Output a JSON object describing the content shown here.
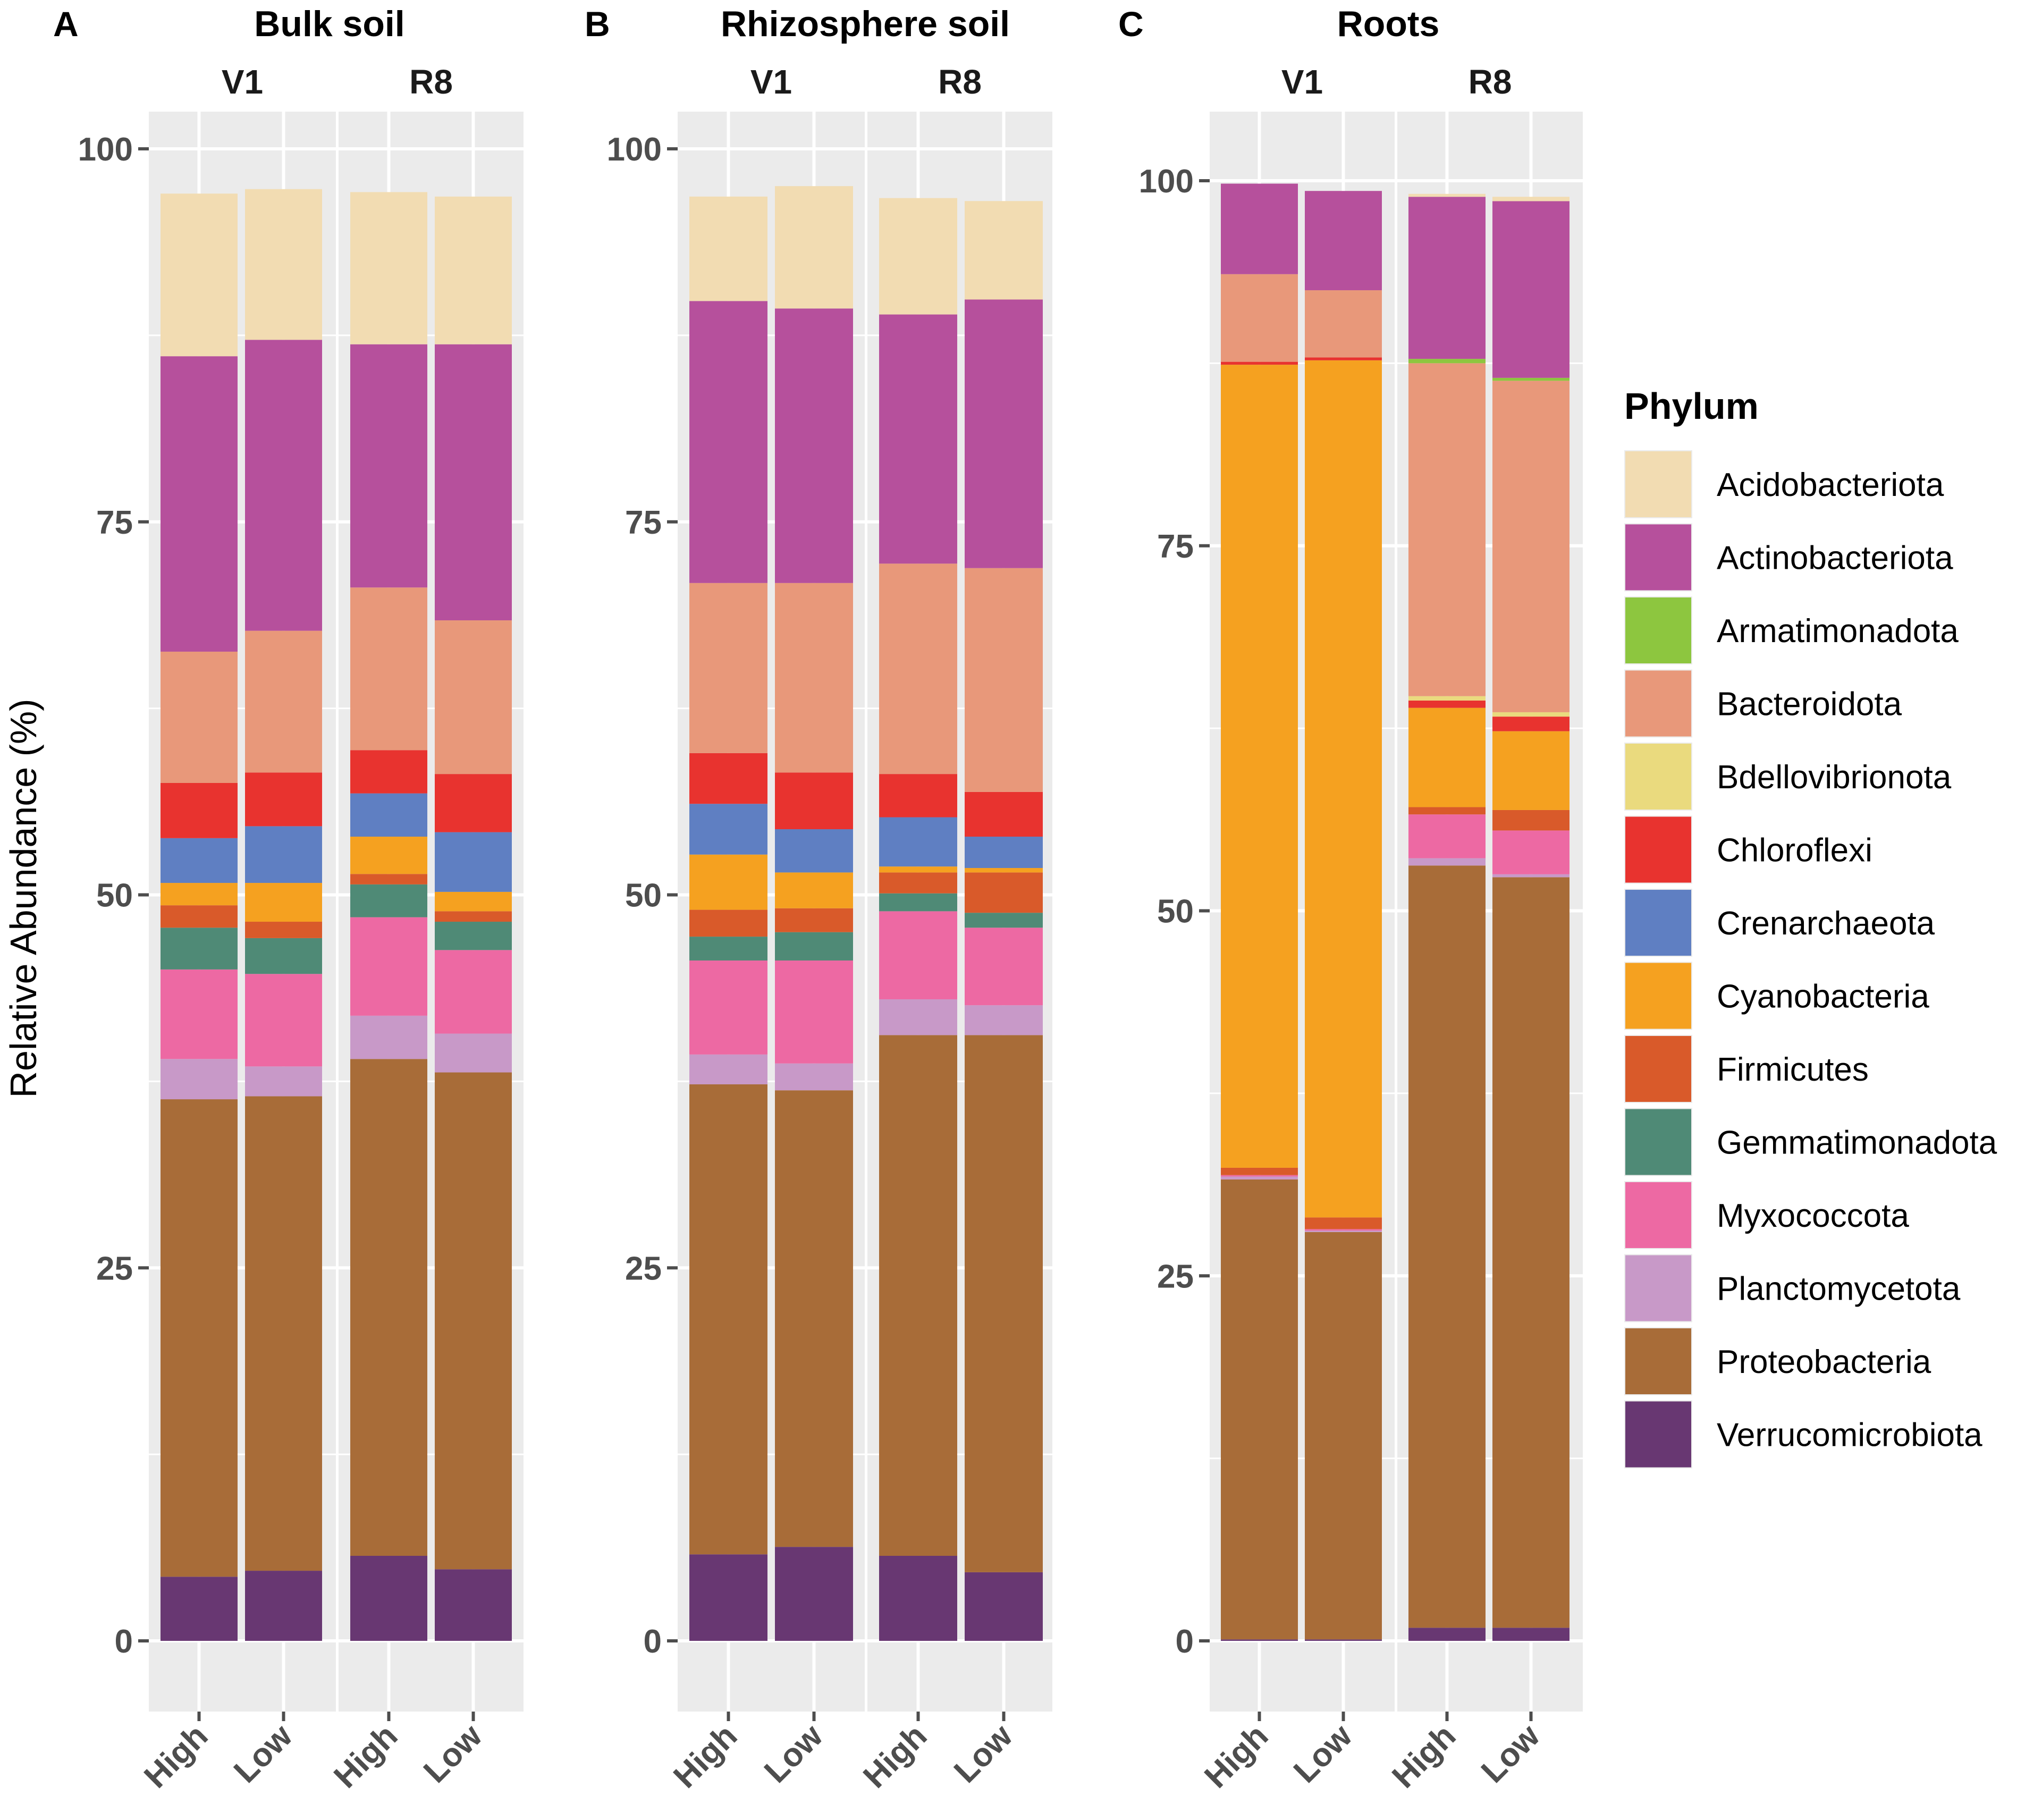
{
  "chart_data": {
    "type": "stacked-bar",
    "ylabel": "Relative Abundance (%)",
    "ylim": [
      -8,
      106
    ],
    "yticks": [
      0,
      25,
      50,
      75,
      100
    ],
    "ytick_labels": [
      "0",
      "25",
      "50",
      "75",
      "100"
    ],
    "grid": true,
    "legend": {
      "title": "Phylum",
      "position": "right",
      "entries": [
        {
          "name": "Acidobacteriota",
          "color": "#f2dcb2"
        },
        {
          "name": "Actinobacteriota",
          "color": "#b6509c"
        },
        {
          "name": "Armatimonadota",
          "color": "#8dc63f"
        },
        {
          "name": "Bacteroidota",
          "color": "#e8987a"
        },
        {
          "name": "Bdellovibrionota",
          "color": "#eada7e"
        },
        {
          "name": "Chloroflexi",
          "color": "#e8332f"
        },
        {
          "name": "Crenarchaeota",
          "color": "#5f7fc2"
        },
        {
          "name": "Cyanobacteria",
          "color": "#f5a120"
        },
        {
          "name": "Firmicutes",
          "color": "#d95a2a"
        },
        {
          "name": "Gemmatimonadota",
          "color": "#4f8a76"
        },
        {
          "name": "Myxococcota",
          "color": "#ed69a3"
        },
        {
          "name": "Planctomycetota",
          "color": "#c899c8"
        },
        {
          "name": "Proteobacteria",
          "color": "#a86c38"
        },
        {
          "name": "Verrucomicrobiota",
          "color": "#683772"
        }
      ]
    },
    "stack_order": [
      "Verrucomicrobiota",
      "Proteobacteria",
      "Planctomycetota",
      "Myxococcota",
      "Gemmatimonadota",
      "Firmicutes",
      "Cyanobacteria",
      "Crenarchaeota",
      "Chloroflexi",
      "Bdellovibrionota",
      "Bacteroidota",
      "Armatimonadota",
      "Actinobacteriota",
      "Acidobacteriota"
    ],
    "panels": [
      {
        "letter": "A",
        "title": "Bulk soil",
        "facets": [
          {
            "label": "V1",
            "bars": [
              {
                "category": "High",
                "values": {
                  "Verrucomicrobiota": 4.3,
                  "Proteobacteria": 32.0,
                  "Planctomycetota": 2.7,
                  "Myxococcota": 6.0,
                  "Gemmatimonadota": 2.8,
                  "Firmicutes": 1.5,
                  "Cyanobacteria": 1.5,
                  "Crenarchaeota": 3.0,
                  "Chloroflexi": 3.7,
                  "Bdellovibrionota": 0,
                  "Bacteroidota": 8.8,
                  "Armatimonadota": 0,
                  "Actinobacteriota": 19.8,
                  "Acidobacteriota": 10.9
                }
              },
              {
                "category": "Low",
                "values": {
                  "Verrucomicrobiota": 4.7,
                  "Proteobacteria": 31.8,
                  "Planctomycetota": 2.0,
                  "Myxococcota": 6.2,
                  "Gemmatimonadota": 2.4,
                  "Firmicutes": 1.1,
                  "Cyanobacteria": 2.6,
                  "Crenarchaeota": 3.8,
                  "Chloroflexi": 3.6,
                  "Bdellovibrionota": 0,
                  "Bacteroidota": 9.5,
                  "Armatimonadota": 0,
                  "Actinobacteriota": 19.5,
                  "Acidobacteriota": 10.1
                }
              }
            ]
          },
          {
            "label": "R8",
            "bars": [
              {
                "category": "High",
                "values": {
                  "Verrucomicrobiota": 5.7,
                  "Proteobacteria": 33.3,
                  "Planctomycetota": 2.9,
                  "Myxococcota": 6.6,
                  "Gemmatimonadota": 2.2,
                  "Firmicutes": 0.7,
                  "Cyanobacteria": 2.5,
                  "Crenarchaeota": 2.9,
                  "Chloroflexi": 2.9,
                  "Bdellovibrionota": 0,
                  "Bacteroidota": 10.9,
                  "Armatimonadota": 0,
                  "Actinobacteriota": 16.3,
                  "Acidobacteriota": 10.2
                }
              },
              {
                "category": "Low",
                "values": {
                  "Verrucomicrobiota": 4.8,
                  "Proteobacteria": 33.3,
                  "Planctomycetota": 2.6,
                  "Myxococcota": 5.6,
                  "Gemmatimonadota": 1.9,
                  "Firmicutes": 0.7,
                  "Cyanobacteria": 1.3,
                  "Crenarchaeota": 4.0,
                  "Chloroflexi": 3.9,
                  "Bdellovibrionota": 0,
                  "Bacteroidota": 10.3,
                  "Armatimonadota": 0,
                  "Actinobacteriota": 18.5,
                  "Acidobacteriota": 9.9
                }
              }
            ]
          }
        ]
      },
      {
        "letter": "B",
        "title": "Rhizosphere soil",
        "facets": [
          {
            "label": "V1",
            "bars": [
              {
                "category": "High",
                "values": {
                  "Verrucomicrobiota": 5.8,
                  "Proteobacteria": 31.5,
                  "Planctomycetota": 2.0,
                  "Myxococcota": 6.3,
                  "Gemmatimonadota": 1.6,
                  "Firmicutes": 1.8,
                  "Cyanobacteria": 3.7,
                  "Crenarchaeota": 3.4,
                  "Chloroflexi": 3.4,
                  "Bdellovibrionota": 0,
                  "Bacteroidota": 11.4,
                  "Armatimonadota": 0,
                  "Actinobacteriota": 18.9,
                  "Acidobacteriota": 7.0
                }
              },
              {
                "category": "Low",
                "values": {
                  "Verrucomicrobiota": 6.3,
                  "Proteobacteria": 30.6,
                  "Planctomycetota": 1.8,
                  "Myxococcota": 6.9,
                  "Gemmatimonadota": 1.9,
                  "Firmicutes": 1.6,
                  "Cyanobacteria": 2.4,
                  "Crenarchaeota": 2.9,
                  "Chloroflexi": 3.8,
                  "Bdellovibrionota": 0,
                  "Bacteroidota": 12.7,
                  "Armatimonadota": 0,
                  "Actinobacteriota": 18.4,
                  "Acidobacteriota": 8.2
                }
              }
            ]
          },
          {
            "label": "R8",
            "bars": [
              {
                "category": "High",
                "values": {
                  "Verrucomicrobiota": 5.7,
                  "Proteobacteria": 34.9,
                  "Planctomycetota": 2.4,
                  "Myxococcota": 5.9,
                  "Gemmatimonadota": 1.2,
                  "Firmicutes": 1.4,
                  "Cyanobacteria": 0.4,
                  "Crenarchaeota": 3.3,
                  "Chloroflexi": 2.9,
                  "Bdellovibrionota": 0,
                  "Bacteroidota": 14.1,
                  "Armatimonadota": 0,
                  "Actinobacteriota": 16.7,
                  "Acidobacteriota": 7.8
                }
              },
              {
                "category": "Low",
                "values": {
                  "Verrucomicrobiota": 4.6,
                  "Proteobacteria": 36.0,
                  "Planctomycetota": 2.0,
                  "Myxococcota": 5.2,
                  "Gemmatimonadota": 1.0,
                  "Firmicutes": 2.7,
                  "Cyanobacteria": 0.3,
                  "Crenarchaeota": 2.1,
                  "Chloroflexi": 3.0,
                  "Bdellovibrionota": 0,
                  "Bacteroidota": 15.0,
                  "Armatimonadota": 0,
                  "Actinobacteriota": 18.0,
                  "Acidobacteriota": 6.6
                }
              }
            ]
          }
        ]
      },
      {
        "letter": "C",
        "title": "Roots",
        "facets": [
          {
            "label": "V1",
            "bars": [
              {
                "category": "High",
                "values": {
                  "Verrucomicrobiota": 0.1,
                  "Proteobacteria": 31.5,
                  "Planctomycetota": 0.2,
                  "Myxococcota": 0.1,
                  "Gemmatimonadota": 0,
                  "Firmicutes": 0.5,
                  "Cyanobacteria": 55.0,
                  "Crenarchaeota": 0,
                  "Chloroflexi": 0.2,
                  "Bdellovibrionota": 0,
                  "Bacteroidota": 6.0,
                  "Armatimonadota": 0,
                  "Actinobacteriota": 6.2,
                  "Acidobacteriota": 0
                }
              },
              {
                "category": "Low",
                "values": {
                  "Verrucomicrobiota": 0.1,
                  "Proteobacteria": 27.9,
                  "Planctomycetota": 0.1,
                  "Myxococcota": 0.1,
                  "Gemmatimonadota": 0,
                  "Firmicutes": 0.8,
                  "Cyanobacteria": 58.7,
                  "Crenarchaeota": 0,
                  "Chloroflexi": 0.2,
                  "Bdellovibrionota": 0,
                  "Bacteroidota": 4.6,
                  "Armatimonadota": 0,
                  "Actinobacteriota": 6.8,
                  "Acidobacteriota": 0
                }
              }
            ]
          },
          {
            "label": "R8",
            "bars": [
              {
                "category": "High",
                "values": {
                  "Verrucomicrobiota": 0.9,
                  "Proteobacteria": 52.2,
                  "Planctomycetota": 0.5,
                  "Myxococcota": 3.0,
                  "Gemmatimonadota": 0,
                  "Firmicutes": 0.5,
                  "Cyanobacteria": 6.8,
                  "Crenarchaeota": 0,
                  "Chloroflexi": 0.5,
                  "Bdellovibrionota": 0.3,
                  "Bacteroidota": 22.8,
                  "Armatimonadota": 0.3,
                  "Actinobacteriota": 11.1,
                  "Acidobacteriota": 0.2
                }
              },
              {
                "category": "Low",
                "values": {
                  "Verrucomicrobiota": 0.9,
                  "Proteobacteria": 51.4,
                  "Planctomycetota": 0.2,
                  "Myxococcota": 3.0,
                  "Gemmatimonadota": 0,
                  "Firmicutes": 1.4,
                  "Cyanobacteria": 5.4,
                  "Crenarchaeota": 0,
                  "Chloroflexi": 1.0,
                  "Bdellovibrionota": 0.3,
                  "Bacteroidota": 22.7,
                  "Armatimonadota": 0.2,
                  "Actinobacteriota": 12.1,
                  "Acidobacteriota": 0.3
                }
              }
            ]
          }
        ]
      }
    ]
  }
}
